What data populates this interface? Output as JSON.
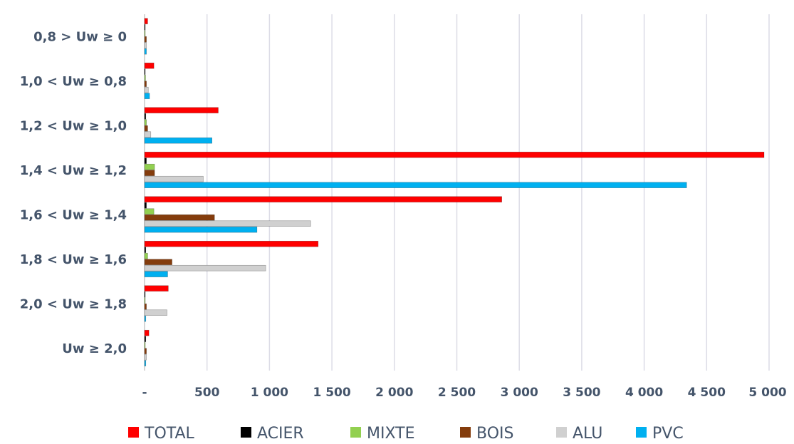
{
  "chart_data": {
    "type": "bar",
    "orientation": "horizontal",
    "title": "",
    "xlabel": "",
    "ylabel": "",
    "xlim": [
      0,
      5000
    ],
    "x_ticks": [
      0,
      500,
      1000,
      1500,
      2000,
      2500,
      3000,
      3500,
      4000,
      4500,
      5000
    ],
    "x_tick_labels": [
      "-",
      "500",
      "1 000",
      "1 500",
      "2 000",
      "2 500",
      "3 000",
      "3 500",
      "4 000",
      "4 500",
      "5 000"
    ],
    "grid": "vertical",
    "legend_position": "bottom",
    "categories": [
      "0,8 > Uw ≥ 0",
      "1,0 < Uw  ≥ 0,8",
      "1,2 < Uw  ≥ 1,0",
      "1,4 < Uw  ≥ 1,2",
      "1,6 < Uw  ≥ 1,4",
      "1,8 < Uw  ≥ 1,6",
      "2,0 < Uw  ≥ 1,8",
      "Uw ≥ 2,0"
    ],
    "series": [
      {
        "name": "TOTAL",
        "color": "#ff0000",
        "values": [
          25,
          75,
          590,
          4960,
          2860,
          1390,
          190,
          35
        ]
      },
      {
        "name": "ACIER",
        "color": "#000000",
        "values": [
          5,
          5,
          10,
          15,
          15,
          10,
          5,
          10
        ]
      },
      {
        "name": "MIXTE",
        "color": "#92d050",
        "values": [
          5,
          8,
          15,
          80,
          75,
          25,
          5,
          5
        ]
      },
      {
        "name": "BOIS",
        "color": "#843c0c",
        "values": [
          15,
          15,
          25,
          80,
          560,
          220,
          15,
          15
        ]
      },
      {
        "name": "ALU",
        "color": "#d0d0d0",
        "values": [
          15,
          30,
          50,
          470,
          1330,
          970,
          180,
          15
        ]
      },
      {
        "name": "PVC",
        "color": "#00b0f0",
        "values": [
          15,
          40,
          540,
          4340,
          900,
          185,
          10,
          10
        ]
      }
    ]
  }
}
